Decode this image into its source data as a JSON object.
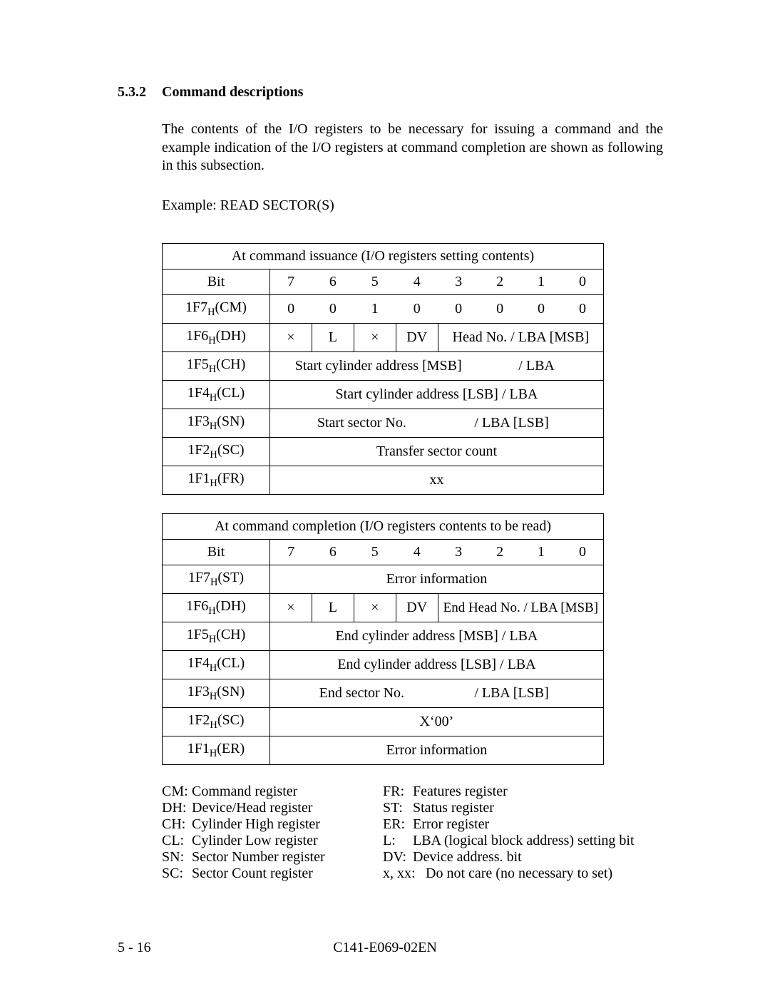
{
  "section": {
    "number": "5.3.2",
    "title": "Command descriptions"
  },
  "paragraph": "The contents of the I/O registers to be necessary for issuing a command and the example indication of the I/O registers at command completion are shown as following in this subsection.",
  "example": "Example:  READ SECTOR(S)",
  "table1": {
    "title": "At command issuance (I/O registers setting contents)",
    "bitLabel": "Bit",
    "bits": [
      "7",
      "6",
      "5",
      "4",
      "3",
      "2",
      "1",
      "0"
    ],
    "rows": {
      "r1": {
        "label_pre": "1F7",
        "label_sub": "H",
        "label_post": "(CM)",
        "cells": [
          "0",
          "0",
          "1",
          "0",
          "0",
          "0",
          "0",
          "0"
        ]
      },
      "r2": {
        "label_pre": "1F6",
        "label_sub": "H",
        "label_post": "(DH)",
        "c0": "×",
        "c1": "L",
        "c2": "×",
        "c3": "DV",
        "c_rest": "Head No. / LBA [MSB]"
      },
      "r3": {
        "label_pre": "1F5",
        "label_sub": "H",
        "label_post": "(CH)",
        "text_a": "Start cylinder address [MSB]",
        "text_b": "/ LBA"
      },
      "r4": {
        "label_pre": "1F4",
        "label_sub": "H",
        "label_post": "(CL)",
        "text": "Start cylinder address [LSB] / LBA"
      },
      "r5": {
        "label_pre": "1F3",
        "label_sub": "H",
        "label_post": "(SN)",
        "text_a": "Start sector No.",
        "text_b": "/ LBA [LSB]"
      },
      "r6": {
        "label_pre": "1F2",
        "label_sub": "H",
        "label_post": "(SC)",
        "text": "Transfer sector count"
      },
      "r7": {
        "label_pre": "1F1",
        "label_sub": "H",
        "label_post": "(FR)",
        "text": "xx"
      }
    }
  },
  "table2": {
    "title": "At command completion (I/O registers contents to be read)",
    "bitLabel": "Bit",
    "bits": [
      "7",
      "6",
      "5",
      "4",
      "3",
      "2",
      "1",
      "0"
    ],
    "rows": {
      "r1": {
        "label_pre": "1F7",
        "label_sub": "H",
        "label_post": "(ST)",
        "text": "Error information"
      },
      "r2": {
        "label_pre": "1F6",
        "label_sub": "H",
        "label_post": "(DH)",
        "c0": "×",
        "c1": "L",
        "c2": "×",
        "c3": "DV",
        "c_rest": "End Head No. / LBA [MSB]"
      },
      "r3": {
        "label_pre": "1F5",
        "label_sub": "H",
        "label_post": "(CH)",
        "text": "End cylinder address [MSB] / LBA"
      },
      "r4": {
        "label_pre": "1F4",
        "label_sub": "H",
        "label_post": "(CL)",
        "text": "End cylinder address [LSB]  / LBA"
      },
      "r5": {
        "label_pre": "1F3",
        "label_sub": "H",
        "label_post": "(SN)",
        "text_a": "End sector No.",
        "text_b": "/ LBA [LSB]"
      },
      "r6": {
        "label_pre": "1F2",
        "label_sub": "H",
        "label_post": "(SC)",
        "text": "X‘00’"
      },
      "r7": {
        "label_pre": "1F1",
        "label_sub": "H",
        "label_post": "(ER)",
        "text": "Error information"
      }
    }
  },
  "legend": {
    "left": [
      {
        "k": "CM:",
        "v": "Command register"
      },
      {
        "k": "DH:",
        "v": "Device/Head register"
      },
      {
        "k": "CH:",
        "v": "Cylinder High register"
      },
      {
        "k": "CL:",
        "v": "Cylinder Low register"
      },
      {
        "k": "SN:",
        "v": "Sector Number register"
      },
      {
        "k": "SC:",
        "v": "Sector Count register"
      }
    ],
    "right": [
      {
        "k": "FR:",
        "v": "Features register"
      },
      {
        "k": "ST:",
        "v": "Status register"
      },
      {
        "k": "ER:",
        "v": "Error register"
      },
      {
        "k": "L:",
        "v": "LBA (logical block address) setting bit"
      },
      {
        "k": "DV:",
        "v": "Device address. bit"
      },
      {
        "k": "x, xx:",
        "v": "Do not care (no necessary to set)",
        "wideKey": true
      }
    ]
  },
  "footer": {
    "left": "5 - 16",
    "center": "C141-E069-02EN"
  }
}
